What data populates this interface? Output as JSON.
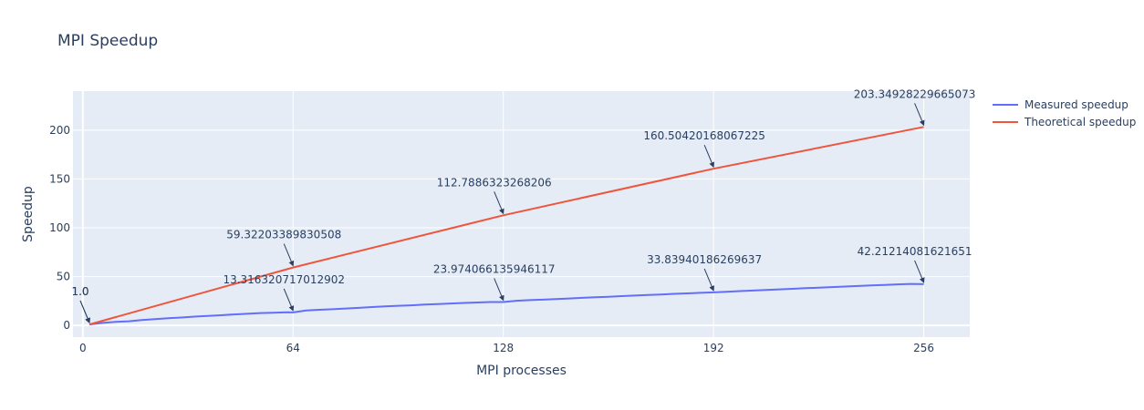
{
  "chart_data": {
    "type": "line",
    "title": "MPI Speedup",
    "xlabel": "MPI processes",
    "ylabel": "Speedup",
    "xlim": [
      -3,
      270
    ],
    "ylim": [
      -12,
      240
    ],
    "xticks": [
      0,
      64,
      128,
      192,
      256
    ],
    "yticks": [
      0,
      50,
      100,
      150,
      200
    ],
    "grid": true,
    "legend_position": "top-right",
    "colors": {
      "plot_bg": "#e5ecf6",
      "grid": "#ffffff",
      "text": "#2a3f5f"
    },
    "series": [
      {
        "name": "Measured speedup",
        "color": "#636efa",
        "x": [
          2,
          6,
          10,
          14,
          18,
          22,
          26,
          30,
          34,
          38,
          42,
          46,
          50,
          54,
          58,
          62,
          64,
          68,
          72,
          76,
          80,
          84,
          88,
          92,
          96,
          100,
          104,
          108,
          112,
          116,
          120,
          124,
          128,
          132,
          136,
          140,
          144,
          148,
          152,
          156,
          160,
          164,
          168,
          172,
          176,
          180,
          184,
          188,
          192,
          196,
          200,
          204,
          208,
          212,
          216,
          220,
          224,
          228,
          232,
          236,
          240,
          244,
          248,
          252,
          256
        ],
        "y": [
          1.0,
          2.6,
          3.6,
          4.2,
          5.5,
          6.5,
          7.4,
          8.1,
          9.0,
          9.7,
          10.4,
          11.2,
          11.9,
          12.6,
          12.9,
          13.5,
          13.3,
          15.3,
          16.0,
          16.6,
          17.3,
          18.0,
          18.8,
          19.5,
          20.1,
          20.6,
          21.3,
          21.9,
          22.4,
          23.0,
          23.5,
          23.9,
          23.97,
          25.2,
          25.9,
          26.4,
          27.0,
          27.6,
          28.2,
          28.8,
          29.3,
          30.0,
          30.6,
          31.1,
          31.7,
          32.3,
          32.8,
          33.4,
          33.84,
          34.5,
          35.1,
          35.7,
          36.3,
          36.9,
          37.5,
          38.1,
          38.6,
          39.2,
          39.8,
          40.4,
          40.9,
          41.5,
          42.0,
          42.5,
          42.21
        ]
      },
      {
        "name": "Theoretical speedup",
        "color": "#ef553b",
        "x": [
          2,
          64,
          128,
          192,
          256
        ],
        "y": [
          1.0,
          59.32203389830508,
          112.7886323268206,
          160.50420168067225,
          203.34928229665073
        ]
      }
    ],
    "annotations": [
      {
        "x": 2,
        "y": 1.0,
        "text": "1.0"
      },
      {
        "x": 2,
        "y": 1.0,
        "text": "1.0"
      },
      {
        "x": 64,
        "y": 59.32203389830508,
        "text": "59.32203389830508"
      },
      {
        "x": 64,
        "y": 13.316320717012902,
        "text": "13.316320717012902"
      },
      {
        "x": 128,
        "y": 112.7886323268206,
        "text": "112.7886323268206"
      },
      {
        "x": 128,
        "y": 23.974066135946117,
        "text": "23.974066135946117"
      },
      {
        "x": 192,
        "y": 160.50420168067225,
        "text": "160.50420168067225"
      },
      {
        "x": 192,
        "y": 33.83940186269637,
        "text": "33.83940186269637"
      },
      {
        "x": 256,
        "y": 203.34928229665073,
        "text": "203.34928229665073"
      },
      {
        "x": 256,
        "y": 42.21214081621651,
        "text": "42.21214081621651"
      }
    ]
  }
}
